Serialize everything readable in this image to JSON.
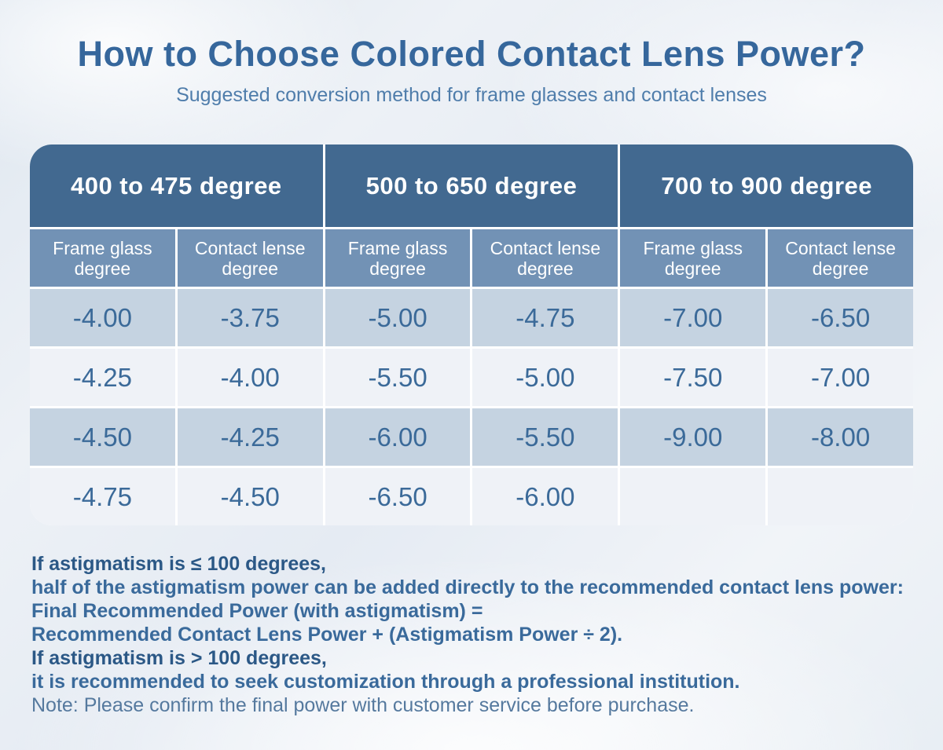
{
  "page": {
    "title": "How to Choose Colored Contact Lens Power?",
    "subtitle": "Suggested conversion method for frame glasses and contact lenses"
  },
  "table": {
    "groups": [
      {
        "label": "400 to 475 degree"
      },
      {
        "label": "500 to 650 degree"
      },
      {
        "label": "700 to 900 degree"
      }
    ],
    "col_headers": [
      {
        "line1": "Frame glass",
        "line2": "degree"
      },
      {
        "line1": "Contact lense",
        "line2": "degree"
      },
      {
        "line1": "Frame glass",
        "line2": "degree"
      },
      {
        "line1": "Contact lense",
        "line2": "degree"
      },
      {
        "line1": "Frame glass",
        "line2": "degree"
      },
      {
        "line1": "Contact lense",
        "line2": "degree"
      }
    ],
    "rows": [
      [
        "-4.00",
        "-3.75",
        "-5.00",
        "-4.75",
        "-7.00",
        "-6.50"
      ],
      [
        "-4.25",
        "-4.00",
        "-5.50",
        "-5.00",
        "-7.50",
        "-7.00"
      ],
      [
        "-4.50",
        "-4.25",
        "-6.00",
        "-5.50",
        "-9.00",
        "-8.00"
      ],
      [
        "-4.75",
        "-4.50",
        "-6.50",
        "-6.00",
        "",
        ""
      ]
    ]
  },
  "footer": {
    "lines": [
      {
        "text": "If astigmatism is ≤ 100 degrees,"
      },
      {
        "text": "half of the astigmatism power can be added directly to the recommended contact lens power:"
      },
      {
        "text": "Final Recommended Power (with astigmatism) ="
      },
      {
        "text": "Recommended Contact Lens Power + (Astigmatism Power ÷ 2)."
      },
      {
        "text": "If astigmatism is > 100 degrees,"
      },
      {
        "text": "it is recommended to seek customization through a professional institution."
      },
      {
        "text": "Note: Please confirm the final power with customer service before purchase."
      }
    ]
  },
  "colors": {
    "title_text": "#36679c",
    "subtitle_text": "#4f7dab",
    "header_bg": "#426990",
    "subheader_bg": "#7292b5",
    "row_alt_bg": "#c5d3e1",
    "row_light_bg": "#eff2f7",
    "data_text": "#3b6a99",
    "footer_bold": "#2b5886",
    "footer_medium": "#3a6a9b",
    "footer_note": "#55799e"
  }
}
